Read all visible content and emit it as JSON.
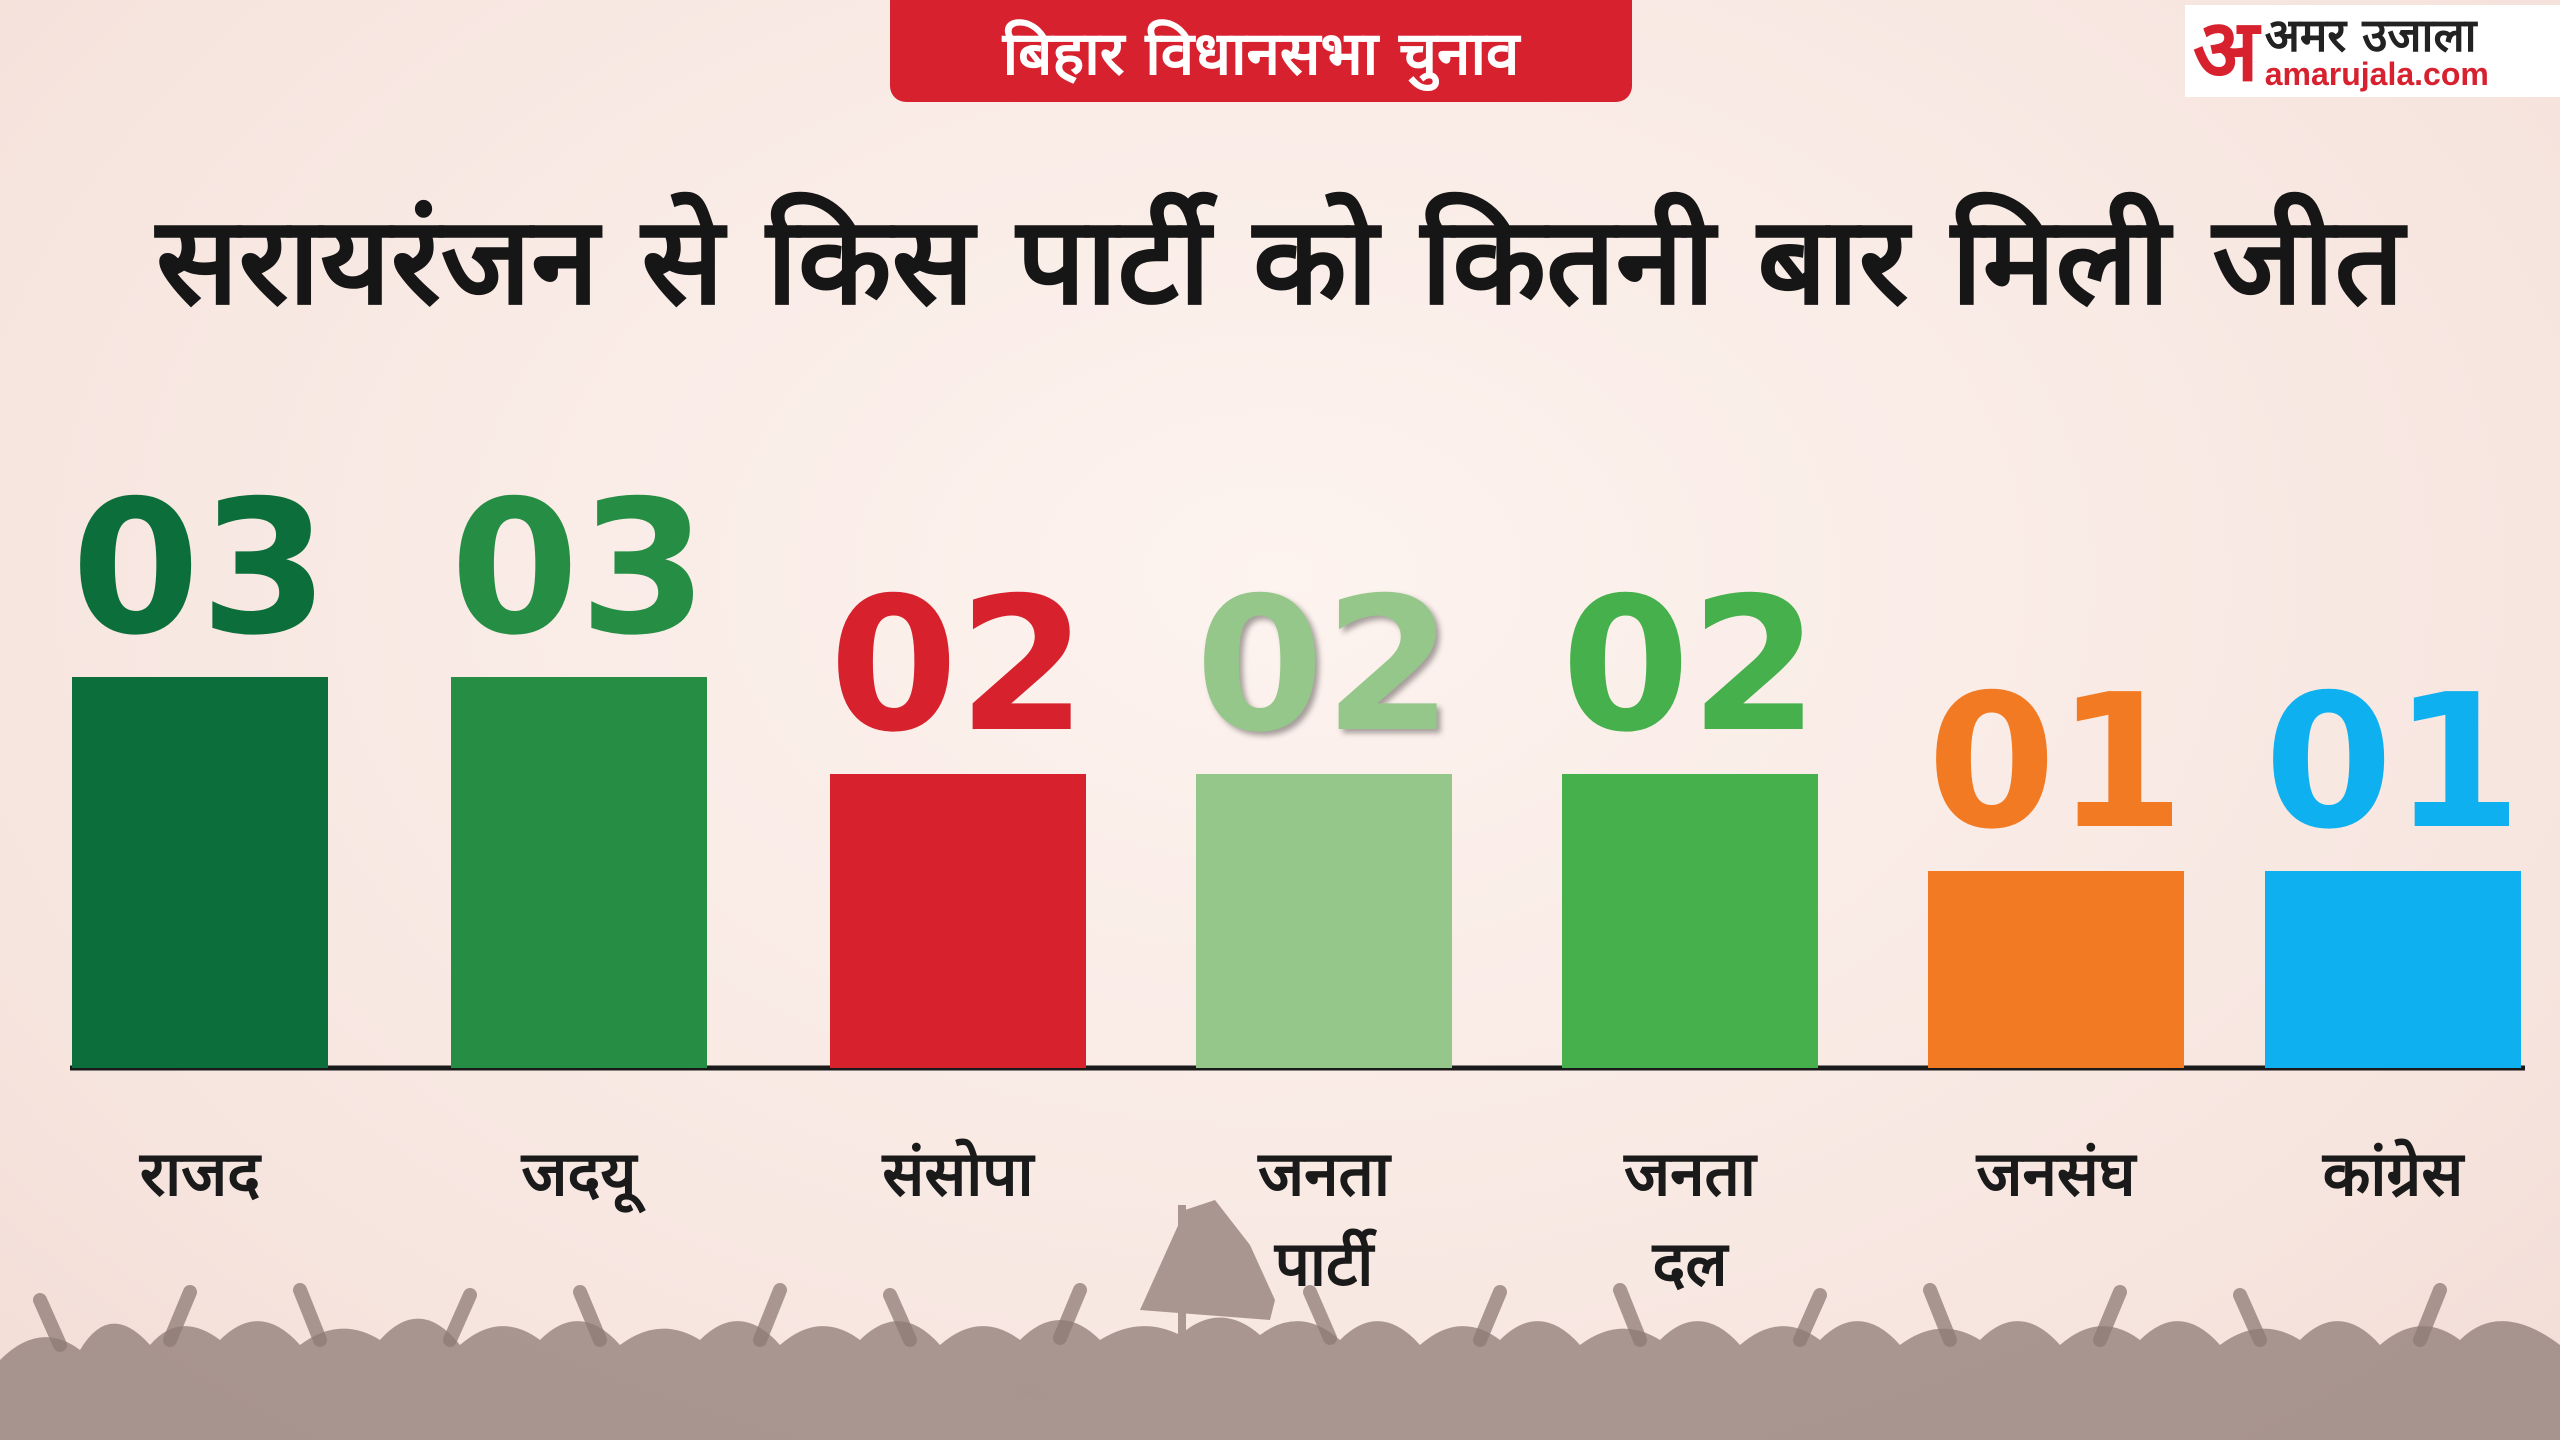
{
  "badge": "बिहार विधानसभा चुनाव",
  "logo": {
    "mark": "अ",
    "hindi": "अमर उजाला",
    "english": "amarujala.com",
    "accent": "#d7212f"
  },
  "headline": "सरायरंजन से किस पार्टी को कितनी बार मिली जीत",
  "chart_data": {
    "type": "bar",
    "title": "सरायरंजन से किस पार्टी को कितनी बार मिली जीत",
    "xlabel": "",
    "ylabel": "",
    "categories": [
      "राजद",
      "जदयू",
      "संसोपा",
      "जनता पार्टी",
      "जनता दल",
      "जनसंघ",
      "कांग्रेस"
    ],
    "values": [
      3,
      3,
      2,
      2,
      2,
      1,
      1
    ],
    "value_labels": [
      "03",
      "03",
      "02",
      "02",
      "02",
      "01",
      "01"
    ],
    "bar_colors": [
      "#0c6e3a",
      "#258e44",
      "#d7222e",
      "#94c789",
      "#45b04c",
      "#f27a23",
      "#0eb0ef"
    ],
    "label_colors": [
      "#0c6e3a",
      "#258e44",
      "#d7222e",
      "#94c789",
      "#45b04c",
      "#f27a23",
      "#0eb0ef"
    ],
    "ylim": [
      0,
      4
    ],
    "grid": false,
    "legend": "none"
  }
}
